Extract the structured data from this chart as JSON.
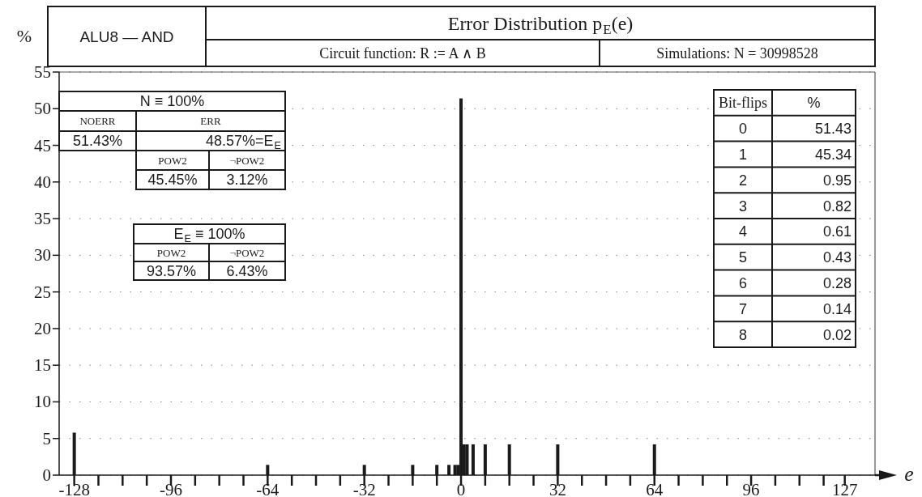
{
  "chart_data": {
    "type": "bar",
    "title": "Error Distribution p$_{E}$(e)",
    "subtitle": "Circuit function: R := A ∧ B",
    "xlabel": "e",
    "ylabel": "%",
    "x": [
      -128,
      -64,
      -32,
      -16,
      -8,
      -4,
      -2,
      -1,
      0,
      1,
      2,
      4,
      8,
      16,
      32,
      64
    ],
    "values": [
      5.8,
      1.4,
      1.4,
      1.4,
      1.4,
      1.4,
      1.4,
      1.4,
      51.4,
      4.2,
      4.2,
      4.2,
      4.2,
      4.2,
      4.2,
      4.2
    ],
    "color": "#1a1a1a",
    "xlim": [
      -133,
      137
    ],
    "xticks": [
      -128,
      {
        "value": -120,
        "label": null
      },
      {
        "value": -112,
        "label": null
      },
      {
        "value": -104,
        "label": null
      },
      -96,
      {
        "value": -88,
        "label": null
      },
      {
        "value": -80,
        "label": null
      },
      {
        "value": -72,
        "label": null
      },
      -64,
      {
        "value": -56,
        "label": null
      },
      {
        "value": -48,
        "label": null
      },
      {
        "value": -40,
        "label": null
      },
      -32,
      {
        "value": -24,
        "label": null
      },
      {
        "value": -16,
        "label": null
      },
      {
        "value": -8,
        "label": null
      },
      0,
      {
        "value": 8,
        "label": null
      },
      {
        "value": 16,
        "label": null
      },
      {
        "value": 24,
        "label": null
      },
      32,
      {
        "value": 40,
        "label": null
      },
      {
        "value": 48,
        "label": null
      },
      {
        "value": 56,
        "label": null
      },
      64,
      {
        "value": 72,
        "label": null
      },
      {
        "value": 80,
        "label": null
      },
      {
        "value": 88,
        "label": null
      },
      96,
      {
        "value": 104,
        "label": null
      },
      {
        "value": 112,
        "label": null
      },
      {
        "value": 120,
        "label": null
      },
      127
    ],
    "ylim": [
      0,
      55
    ],
    "yticks": [
      0,
      5,
      10,
      15,
      20,
      25,
      30,
      35,
      40,
      45,
      50,
      55
    ],
    "grid": "y",
    "annotations": [
      "ALU8 — AND",
      "Simulations: N = 30998528",
      "N ≡ 100%",
      "NOERR",
      "ERR",
      "51.43%",
      "48.57%=E$_{E}$",
      "POW2",
      "¬POW2",
      "45.45%",
      "3.12%",
      "E$_{E}$ ≡ 100%",
      "POW2",
      "¬POW2",
      "93.57%",
      "6.43%",
      "Bit-flips",
      "%",
      "0",
      "51.43",
      "1",
      "45.34",
      "2",
      "0.95",
      "3",
      "0.82",
      "4",
      "0.61",
      "5",
      "0.43",
      "6",
      "0.28",
      "7",
      "0.14",
      "8",
      "0.02"
    ]
  }
}
